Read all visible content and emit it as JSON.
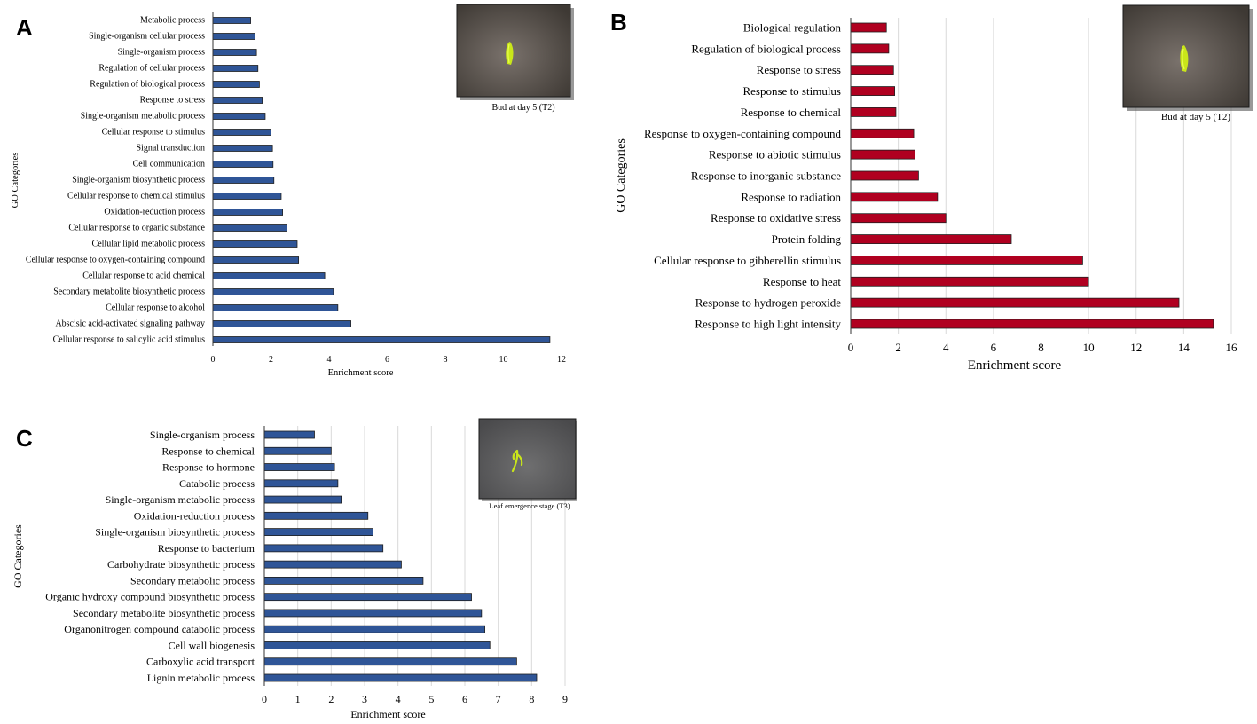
{
  "panels": [
    "A",
    "B",
    "C"
  ],
  "colors": {
    "blue": "#2f5597",
    "red": "#b00020",
    "grid": "#d9d9d9"
  },
  "chart_data": [
    {
      "panel": "A",
      "type": "bar",
      "orientation": "horizontal",
      "title": "",
      "xlabel": "Enrichment score",
      "ylabel": "GO Categories",
      "xlim": [
        0,
        12
      ],
      "xticks": [
        0,
        2,
        4,
        6,
        8,
        10,
        12
      ],
      "grid": false,
      "inset_caption": "Bud at day 5 (T2)",
      "categories": [
        "Metabolic process",
        "Single-organism cellular process",
        "Single-organism process",
        "Regulation of cellular process",
        "Regulation of biological process",
        "Response to stress",
        "Single-organism metabolic process",
        "Cellular response to stimulus",
        "Signal transduction",
        "Cell communication",
        "Single-organism biosynthetic process",
        "Cellular response to chemical stimulus",
        "Oxidation-reduction process",
        "Cellular response to organic substance",
        "Cellular lipid metabolic process",
        "Cellular response to oxygen-containing compound",
        "Cellular response to acid chemical",
        "Secondary metabolite biosynthetic process",
        "Cellular response to alcohol",
        "Abscisic acid-activated signaling pathway",
        "Cellular response to salicylic acid stimulus"
      ],
      "values": [
        1.3,
        1.45,
        1.5,
        1.55,
        1.6,
        1.7,
        1.8,
        2.0,
        2.05,
        2.07,
        2.1,
        2.35,
        2.4,
        2.55,
        2.9,
        2.95,
        3.85,
        4.15,
        4.3,
        4.75,
        11.6
      ]
    },
    {
      "panel": "B",
      "type": "bar",
      "orientation": "horizontal",
      "title": "",
      "xlabel": "Enrichment  score",
      "ylabel": "GO Categories",
      "xlim": [
        0,
        16
      ],
      "xticks": [
        0,
        2,
        4,
        6,
        8,
        10,
        12,
        14,
        16
      ],
      "grid": true,
      "inset_caption": "Bud at day 5 (T2)",
      "categories": [
        "Biological regulation",
        "Regulation of biological process",
        "Response to stress",
        "Response to stimulus",
        "Response to chemical",
        "Response to oxygen-containing compound",
        "Response to abiotic stimulus",
        "Response to inorganic substance",
        "Response to radiation",
        "Response to oxidative stress",
        "Protein folding",
        "Cellular response to gibberellin stimulus",
        "Response to heat",
        "Response to hydrogen peroxide",
        "Response to high light intensity"
      ],
      "values": [
        1.5,
        1.6,
        1.8,
        1.85,
        1.9,
        2.65,
        2.7,
        2.85,
        3.65,
        4.0,
        6.75,
        9.75,
        10.0,
        13.8,
        15.25
      ]
    },
    {
      "panel": "C",
      "type": "bar",
      "orientation": "horizontal",
      "title": "",
      "xlabel": "Enrichment score",
      "ylabel": "GO Categories",
      "xlim": [
        0,
        9
      ],
      "xticks": [
        0,
        1,
        2,
        3,
        4,
        5,
        6,
        7,
        8,
        9
      ],
      "grid": true,
      "inset_caption": "Leaf emergence stage (T3)",
      "categories": [
        "Single-organism process",
        "Response to chemical",
        "Response to hormone",
        "Catabolic process",
        "Single-organism metabolic process",
        "Oxidation-reduction process",
        "Single-organism biosynthetic process",
        "Response to bacterium",
        "Carbohydrate biosynthetic process",
        "Secondary metabolic process",
        "Organic hydroxy compound biosynthetic process",
        "Secondary metabolite biosynthetic process",
        "Organonitrogen compound catabolic process",
        "Cell wall biogenesis",
        "Carboxylic acid transport",
        "Lignin metabolic process"
      ],
      "values": [
        1.5,
        2.0,
        2.1,
        2.2,
        2.3,
        3.1,
        3.25,
        3.55,
        4.1,
        4.75,
        6.2,
        6.5,
        6.6,
        6.75,
        7.55,
        8.15
      ]
    }
  ]
}
